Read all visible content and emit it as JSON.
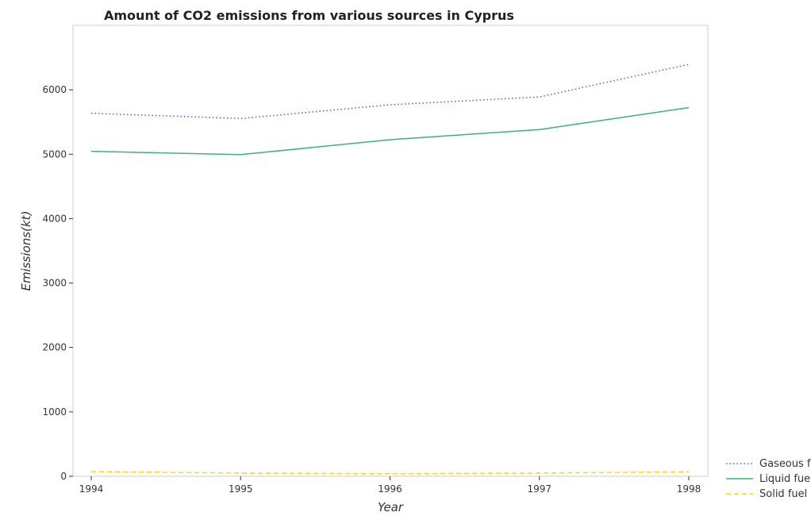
{
  "chart_data": {
    "type": "line",
    "title": "Amount of CO2 emissions from various sources in Cyprus",
    "xlabel": "Year",
    "ylabel": "Emissions(kt)",
    "categories": [
      "1994",
      "1995",
      "1996",
      "1997",
      "1998"
    ],
    "ylim": [
      0,
      7000
    ],
    "yticks": [
      "0",
      "1000",
      "2000",
      "3000",
      "4000",
      "5000",
      "6000"
    ],
    "ytick_values": [
      0,
      1000,
      2000,
      3000,
      4000,
      5000,
      6000
    ],
    "grid": false,
    "legend_position": "bottom-right",
    "series": [
      {
        "name": "Gaseous fuel",
        "values": [
          5636,
          5555,
          5768,
          5889,
          6395
        ],
        "color": "#4169c8",
        "style": "dotted"
      },
      {
        "name": "Liquid fuel",
        "values": [
          5046,
          4994,
          5225,
          5383,
          5724
        ],
        "color": "#3cb371",
        "style": "solid"
      },
      {
        "name": "Solid fuel",
        "values": [
          73,
          51,
          40,
          51,
          70
        ],
        "color": "#ffd700",
        "style": "dashed"
      }
    ]
  }
}
